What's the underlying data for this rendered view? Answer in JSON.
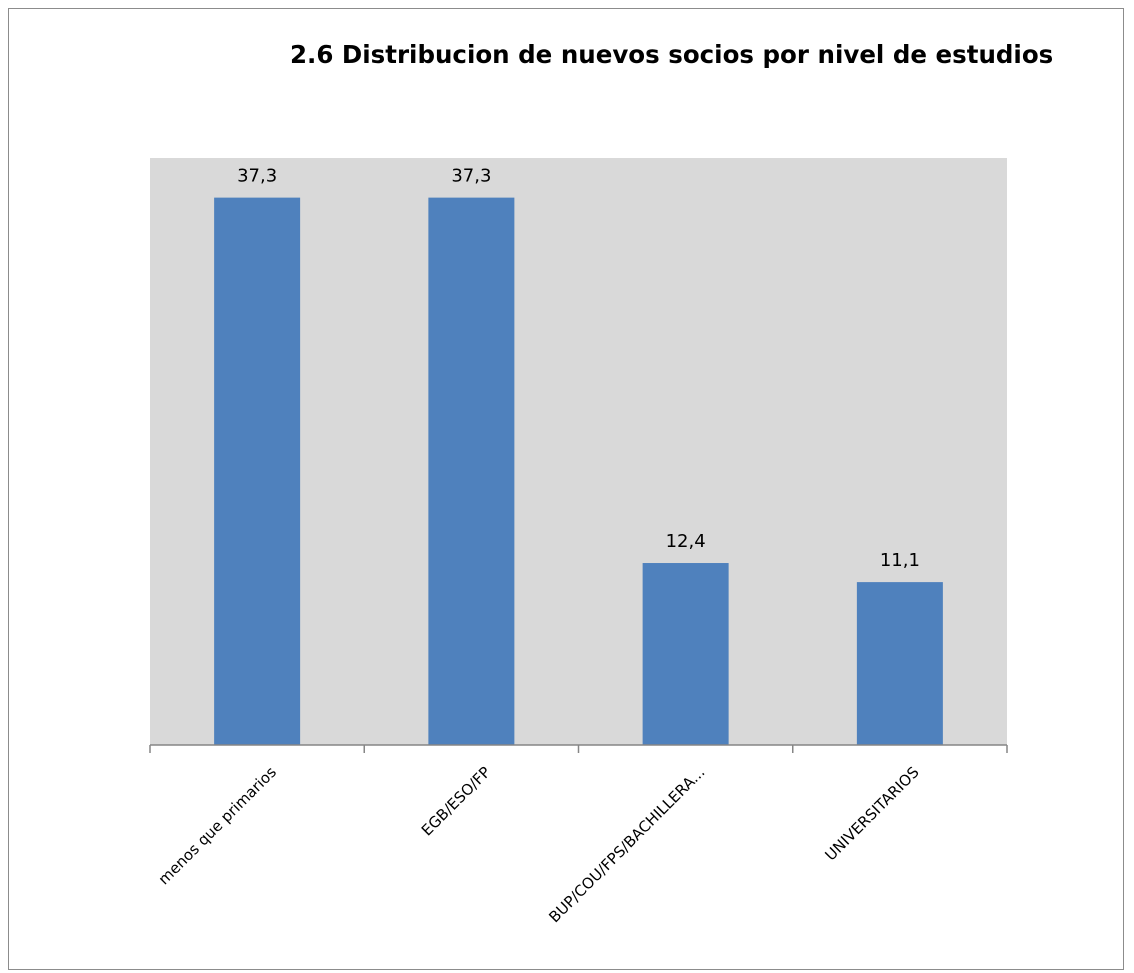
{
  "chart_data": {
    "type": "bar",
    "title": "2.6 Distribucion de nuevos socios por nivel de estudios",
    "categories": [
      "menos que primarios",
      "EGB/ESO/FP",
      "BUP/COU/FPS/BACHILLERA...",
      "UNIVERSITARIOS"
    ],
    "values": [
      37.3,
      37.3,
      12.4,
      11.1
    ],
    "value_labels": [
      "37,3",
      "37,3",
      "12,4",
      "11,1"
    ],
    "ylim": [
      0,
      40
    ],
    "grid": false,
    "legend": "none",
    "colors": {
      "bar": "#4f81bd",
      "plot_background": "#d9d9d9",
      "axis": "#868686"
    }
  }
}
